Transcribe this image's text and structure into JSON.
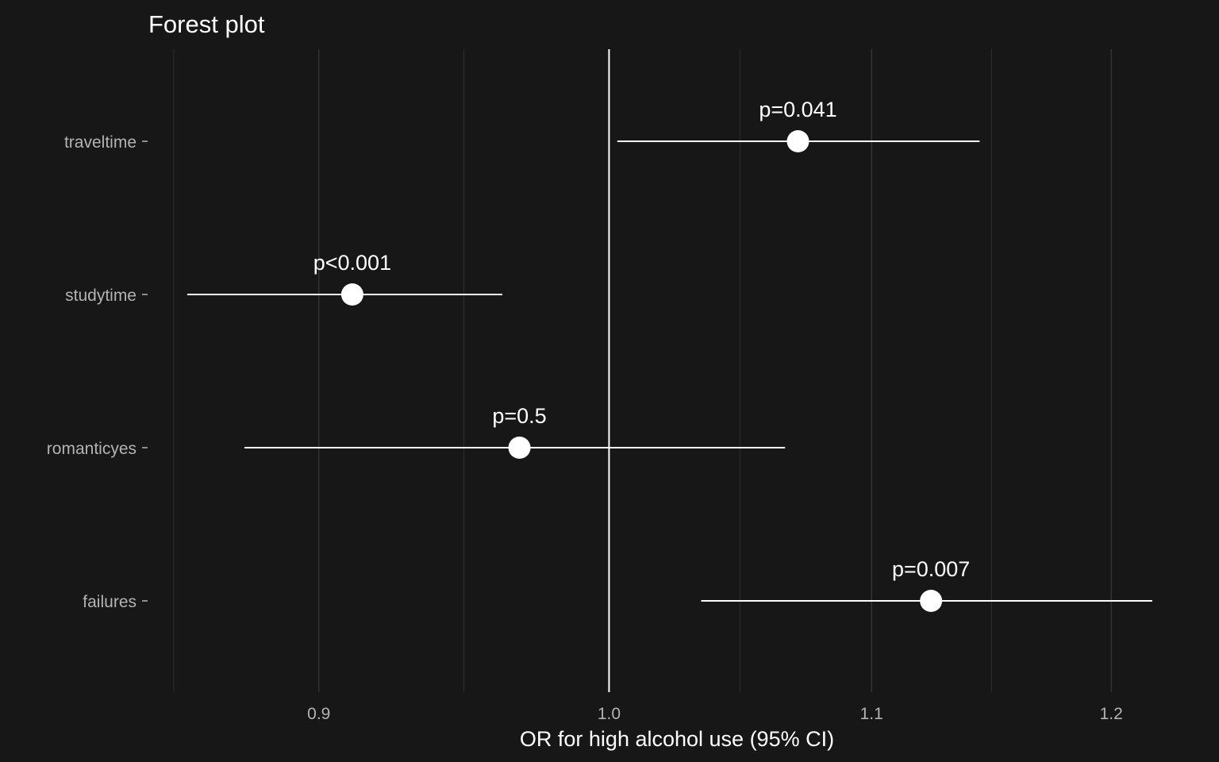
{
  "chart_data": {
    "type": "scatter",
    "subtype": "forest",
    "title": "Forest plot",
    "xlabel": "OR for high alcohol use (95% CI)",
    "ylabel": "",
    "xscale": "log",
    "xlim": [
      0.846,
      1.235
    ],
    "xticks": [
      0.9,
      1.0,
      1.1,
      1.2
    ],
    "xtick_labels": [
      "0.9",
      "1.0",
      "1.1",
      "1.2"
    ],
    "reference_line": 1.0,
    "grid": "vertical",
    "legend": "none",
    "colors": {
      "background": "#171717",
      "grid": "#3a3a3a",
      "points": "#ffffff",
      "text": "#ffffff",
      "tick_text": "#b3b3b3"
    },
    "rows": [
      {
        "label": "traveltime",
        "or": 1.071,
        "lower": 1.003,
        "upper": 1.144,
        "p_label": "p=0.041"
      },
      {
        "label": "studytime",
        "or": 0.911,
        "lower": 0.858,
        "upper": 0.962,
        "p_label": "p<0.001"
      },
      {
        "label": "romanticyes",
        "or": 0.968,
        "lower": 0.876,
        "upper": 1.066,
        "p_label": "p=0.5"
      },
      {
        "label": "failures",
        "or": 1.124,
        "lower": 1.034,
        "upper": 1.218,
        "p_label": "p=0.007"
      }
    ]
  }
}
